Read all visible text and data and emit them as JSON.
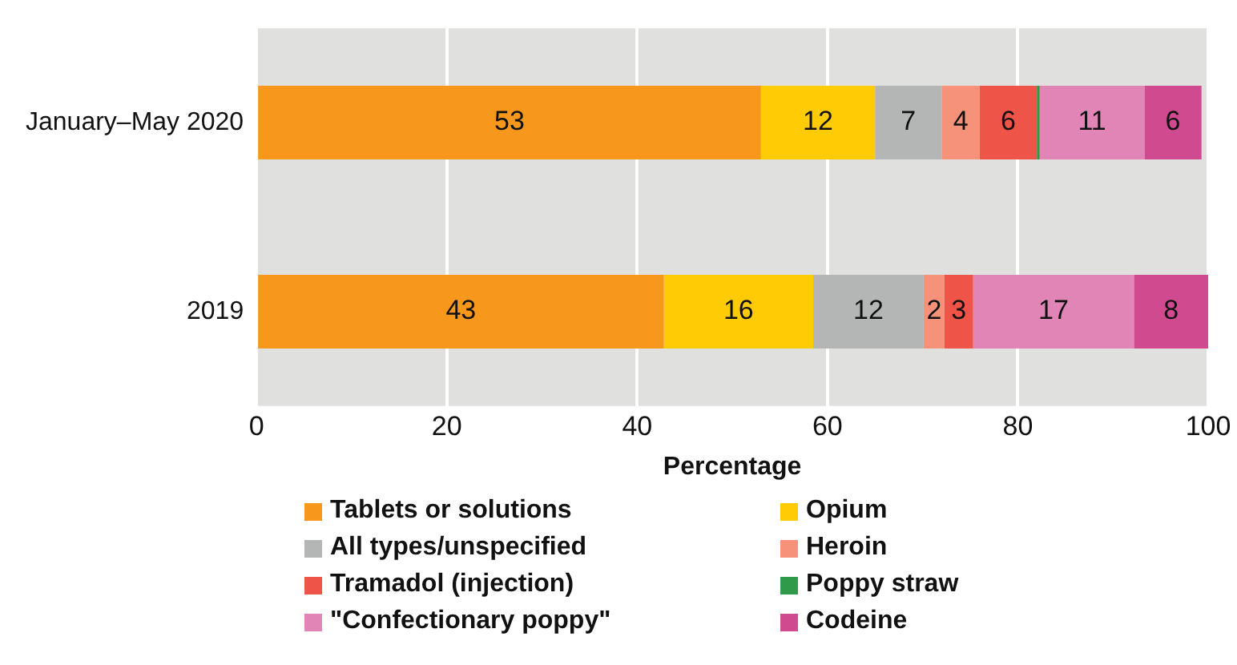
{
  "chart_data": {
    "type": "bar",
    "orientation": "horizontal",
    "stacked": true,
    "xlabel": "Percentage",
    "categories": [
      "January–May 2020",
      "2019"
    ],
    "series": [
      {
        "name": "Tablets or solutions",
        "color": "#f7981d",
        "values": [
          53,
          42.8
        ],
        "value_labels": [
          "53",
          "43"
        ]
      },
      {
        "name": "Opium",
        "color": "#ffcb05",
        "values": [
          12,
          15.7
        ],
        "value_labels": [
          "12",
          "16"
        ]
      },
      {
        "name": "All types/unspecified",
        "color": "#b4b6b5",
        "values": [
          7,
          11.6
        ],
        "value_labels": [
          "7",
          "12"
        ]
      },
      {
        "name": "Heroin",
        "color": "#f6917a",
        "values": [
          4,
          2.2
        ],
        "value_labels": [
          "4",
          "2"
        ]
      },
      {
        "name": "Tramadol (injection)",
        "color": "#ef5448",
        "values": [
          6,
          3
        ],
        "value_labels": [
          "6",
          "3"
        ]
      },
      {
        "name": "Poppy straw",
        "color": "#2e9a4a",
        "values": [
          0.3,
          0
        ],
        "value_labels": [
          null,
          null
        ]
      },
      {
        "name": "\"Confectionary poppy\"",
        "color": "#e085b5",
        "values": [
          11,
          16.9
        ],
        "value_labels": [
          "11",
          "17"
        ]
      },
      {
        "name": "Codeine",
        "color": "#cf4a8f",
        "values": [
          6,
          7.8
        ],
        "value_labels": [
          "6",
          "8"
        ]
      }
    ],
    "xlim": [
      0,
      100
    ],
    "xticks": [
      0,
      20,
      40,
      60,
      80,
      100
    ],
    "grid": "x",
    "legend": "bottom"
  }
}
